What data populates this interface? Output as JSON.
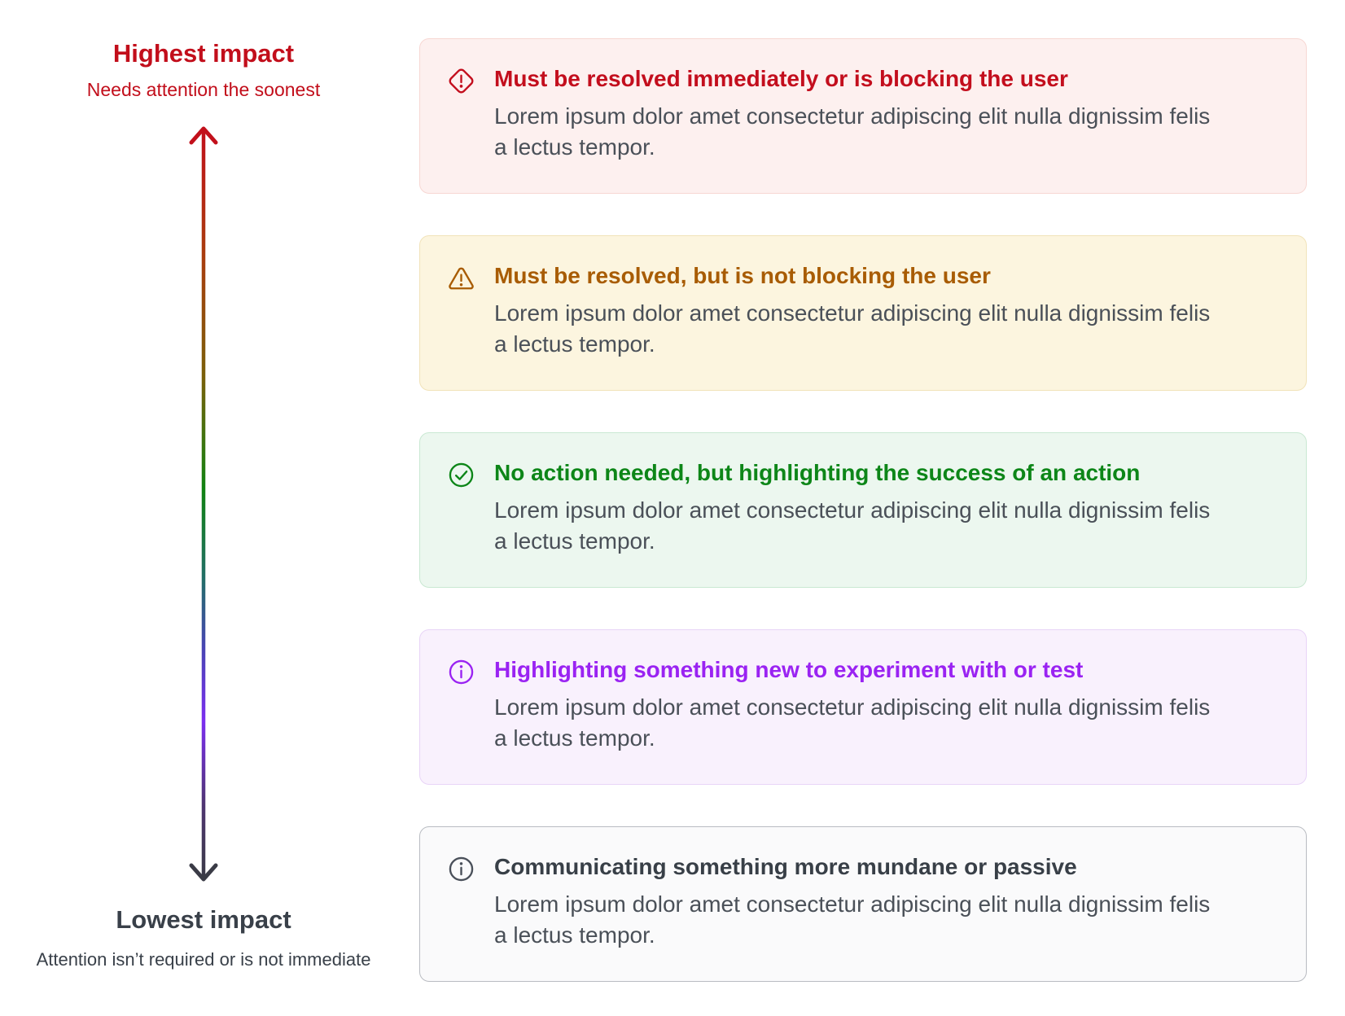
{
  "background_color": "#ffffff",
  "body_text_color": "#4a5058",
  "impact_scale": {
    "top": {
      "title": "Highest impact",
      "caption": "Needs attention the soonest",
      "color": "#c20e1b"
    },
    "bottom": {
      "title": "Lowest impact",
      "caption": "Attention isn’t required or is not immediate",
      "color": "#394049"
    },
    "arrow": {
      "gradient_stops": [
        {
          "offset": 0,
          "color": "#c2101b"
        },
        {
          "offset": 0.17,
          "color": "#a93d0e"
        },
        {
          "offset": 0.33,
          "color": "#7a600a"
        },
        {
          "offset": 0.48,
          "color": "#108212"
        },
        {
          "offset": 0.6,
          "color": "#226e68"
        },
        {
          "offset": 0.69,
          "color": "#4745b2"
        },
        {
          "offset": 0.79,
          "color": "#7b2ef0"
        },
        {
          "offset": 0.9,
          "color": "#4f3572"
        },
        {
          "offset": 1,
          "color": "#3a3b46"
        }
      ],
      "top_head_color": "#c2101b",
      "bottom_head_color": "#3a3b46"
    }
  },
  "cards": [
    {
      "severity": "critical",
      "icon": "diamond-alert",
      "title": "Must be resolved immediately or is blocking the user",
      "body": "Lorem ipsum dolor amet consectetur adipiscing elit nulla dignissim felis\na lectus tempor.",
      "colors": {
        "background": "#fdf0ef",
        "border": "#f7d7d3",
        "title": "#c30e1d",
        "icon": "#c30e1d"
      }
    },
    {
      "severity": "warning",
      "icon": "triangle-warning",
      "title": "Must be resolved, but is not blocking the user",
      "body": "Lorem ipsum dolor amet consectetur adipiscing elit nulla dignissim felis\na lectus tempor.",
      "colors": {
        "background": "#fcf5df",
        "border": "#f1e3b9",
        "title": "#a85c04",
        "icon": "#a85c04"
      }
    },
    {
      "severity": "success",
      "icon": "check-circle",
      "title": "No action needed, but highlighting the success of an action",
      "body": "Lorem ipsum dolor amet consectetur adipiscing elit nulla dignissim felis\na lectus tempor.",
      "colors": {
        "background": "#ecf7ef",
        "border": "#c9e8d2",
        "title": "#0d8618",
        "icon": "#0d8618"
      }
    },
    {
      "severity": "experiment",
      "icon": "info-circle",
      "title": "Highlighting something new to experiment with or test",
      "body": "Lorem ipsum dolor amet consectetur adipiscing elit nulla dignissim felis\na lectus tempor.",
      "colors": {
        "background": "#f9f1fd",
        "border": "#e8d4f7",
        "title": "#9a23f2",
        "icon": "#9a23f2"
      }
    },
    {
      "severity": "neutral",
      "icon": "info-circle",
      "title": "Communicating something more mundane or passive",
      "body": "Lorem ipsum dolor amet consectetur adipiscing elit nulla dignissim felis\na lectus tempor.",
      "colors": {
        "background": "#fafafb",
        "border": "#b9bcc2",
        "title": "#383f47",
        "icon": "#4a505a"
      }
    }
  ]
}
